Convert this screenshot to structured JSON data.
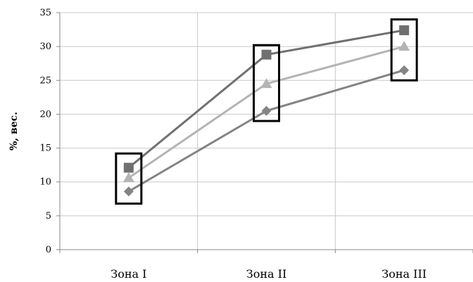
{
  "chart_data": {
    "type": "line",
    "categories": [
      "Зона I",
      "Зона II",
      "Зона III"
    ],
    "ylabel": "%, вес.",
    "ylim": [
      0,
      35
    ],
    "yticks": [
      0,
      5,
      10,
      15,
      20,
      25,
      30,
      35
    ],
    "grid": true,
    "series": [
      {
        "values": [
          12.1,
          28.8,
          32.4
        ],
        "color": "#707070",
        "marker": "square"
      },
      {
        "values": [
          10.6,
          24.5,
          30.0
        ],
        "color": "#b4b4b4",
        "marker": "triangle"
      },
      {
        "values": [
          8.6,
          20.5,
          26.5
        ],
        "color": "#848484",
        "marker": "diamond"
      }
    ],
    "annotations": [
      {
        "type": "box",
        "category": "Зона I",
        "y_range": [
          6.8,
          14.2
        ]
      },
      {
        "type": "box",
        "category": "Зона II",
        "y_range": [
          19.0,
          30.2
        ]
      },
      {
        "type": "box",
        "category": "Зона III",
        "y_range": [
          25.0,
          34.0
        ]
      }
    ]
  }
}
